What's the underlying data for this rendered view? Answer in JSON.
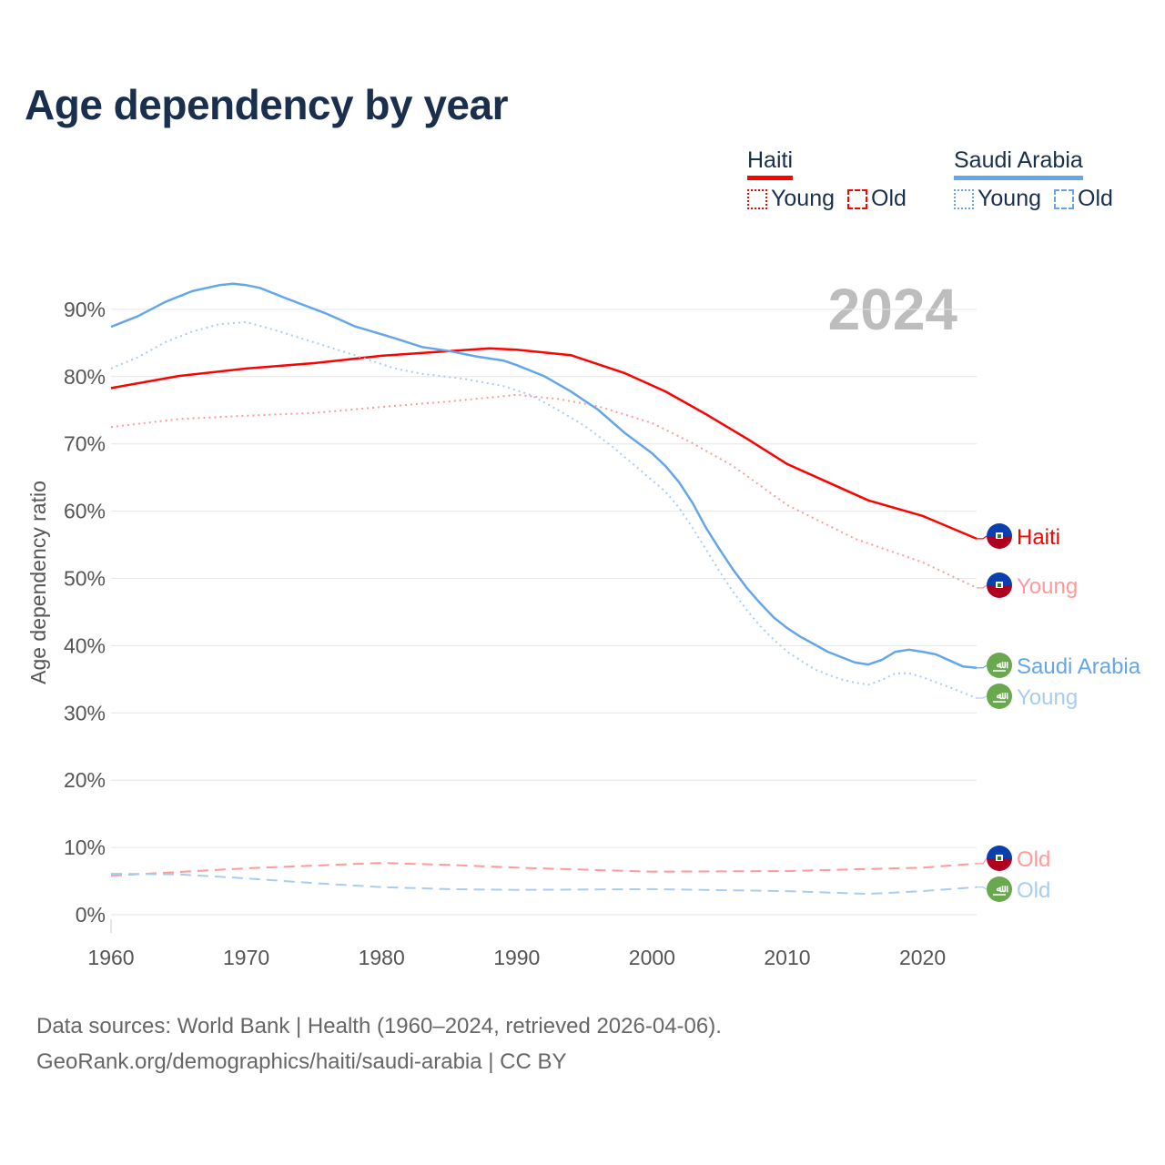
{
  "title": "Age dependency by year",
  "legend": {
    "countries": [
      {
        "name": "Haiti",
        "color": "#ff0000",
        "young_label": "Young",
        "old_label": "Old"
      },
      {
        "name": "Saudi Arabia",
        "color": "#64a6ea",
        "young_label": "Young",
        "old_label": "Old"
      }
    ]
  },
  "footer": {
    "line1": "Data sources: World Bank | Health (1960–2024, retrieved 2026-04-06).",
    "line2": "GeoRank.org/demographics/haiti/saudi-arabia | CC BY"
  },
  "chart_data": {
    "type": "line",
    "title": "Age dependency by year",
    "ylabel": "Age dependency ratio",
    "xlabel": "",
    "year_label": "2024",
    "xlim": [
      1960,
      2024
    ],
    "ylim": [
      0,
      95
    ],
    "x_ticks": [
      1960,
      1970,
      1980,
      1990,
      2000,
      2010,
      2020
    ],
    "y_ticks": [
      0,
      10,
      20,
      30,
      40,
      50,
      60,
      70,
      80,
      90
    ],
    "y_tick_labels": [
      "0%",
      "10%",
      "20%",
      "30%",
      "40%",
      "50%",
      "60%",
      "70%",
      "80%",
      "90%"
    ],
    "grid": true,
    "series": [
      {
        "name": "Haiti",
        "end_label": "Haiti",
        "color": "#ff0000",
        "style": "solid",
        "flag": "haiti",
        "points": [
          [
            1960,
            78.3
          ],
          [
            1965,
            80.1
          ],
          [
            1970,
            81.2
          ],
          [
            1975,
            82
          ],
          [
            1980,
            83.1
          ],
          [
            1985,
            83.8
          ],
          [
            1988,
            84.2
          ],
          [
            1990,
            84
          ],
          [
            1994,
            83.2
          ],
          [
            1998,
            80.5
          ],
          [
            2001,
            77.8
          ],
          [
            2004,
            74.4
          ],
          [
            2007,
            70.8
          ],
          [
            2010,
            67
          ],
          [
            2013,
            64.3
          ],
          [
            2016,
            61.6
          ],
          [
            2020,
            59.3
          ],
          [
            2024,
            55.9
          ]
        ]
      },
      {
        "name": "Haiti Young",
        "end_label": "Young",
        "color": "#ff9a9a",
        "style": "dotted",
        "flag": "haiti",
        "points": [
          [
            1960,
            72.5
          ],
          [
            1965,
            73.7
          ],
          [
            1970,
            74.2
          ],
          [
            1975,
            74.6
          ],
          [
            1980,
            75.5
          ],
          [
            1985,
            76.3
          ],
          [
            1990,
            77.3
          ],
          [
            1993,
            76.7
          ],
          [
            1996,
            75.6
          ],
          [
            2000,
            73.1
          ],
          [
            2003,
            70.1
          ],
          [
            2006,
            66.7
          ],
          [
            2010,
            60.9
          ],
          [
            2015,
            55.9
          ],
          [
            2020,
            52.4
          ],
          [
            2024,
            48.6
          ]
        ]
      },
      {
        "name": "Haiti Old",
        "end_label": "Old",
        "color": "#ff9a9a",
        "style": "dashed",
        "flag": "haiti",
        "points": [
          [
            1960,
            5.8
          ],
          [
            1970,
            6.9
          ],
          [
            1980,
            7.7
          ],
          [
            1985,
            7.4
          ],
          [
            1990,
            7.0
          ],
          [
            2000,
            6.4
          ],
          [
            2010,
            6.5
          ],
          [
            2020,
            7.0
          ],
          [
            2024,
            7.6
          ]
        ]
      },
      {
        "name": "Saudi Arabia",
        "end_label": "Saudi Arabia",
        "color": "#64a6ea",
        "style": "solid",
        "flag": "saudi",
        "points": [
          [
            1960,
            87.4
          ],
          [
            1962,
            89
          ],
          [
            1964,
            91.1
          ],
          [
            1966,
            92.7
          ],
          [
            1968,
            93.6
          ],
          [
            1969,
            93.8
          ],
          [
            1970,
            93.6
          ],
          [
            1971,
            93.2
          ],
          [
            1973,
            91.6
          ],
          [
            1976,
            89.3
          ],
          [
            1978,
            87.5
          ],
          [
            1981,
            85.7
          ],
          [
            1983,
            84.4
          ],
          [
            1985,
            83.8
          ],
          [
            1987,
            83
          ],
          [
            1989,
            82.4
          ],
          [
            1990,
            81.7
          ],
          [
            1992,
            80.1
          ],
          [
            1994,
            77.8
          ],
          [
            1996,
            75.1
          ],
          [
            1998,
            71.6
          ],
          [
            2000,
            68.6
          ],
          [
            2001,
            66.7
          ],
          [
            2002,
            64.3
          ],
          [
            2003,
            61.2
          ],
          [
            2004,
            57.5
          ],
          [
            2005,
            54.3
          ],
          [
            2006,
            51.3
          ],
          [
            2007,
            48.6
          ],
          [
            2008,
            46.3
          ],
          [
            2009,
            44.2
          ],
          [
            2010,
            42.6
          ],
          [
            2011,
            41.3
          ],
          [
            2012,
            40.2
          ],
          [
            2013,
            39.1
          ],
          [
            2014,
            38.3
          ],
          [
            2015,
            37.5
          ],
          [
            2016,
            37.2
          ],
          [
            2017,
            37.9
          ],
          [
            2018,
            39.1
          ],
          [
            2019,
            39.4
          ],
          [
            2020,
            39.1
          ],
          [
            2021,
            38.7
          ],
          [
            2022,
            37.8
          ],
          [
            2023,
            36.9
          ],
          [
            2024,
            36.7
          ]
        ]
      },
      {
        "name": "Saudi Arabia Young",
        "end_label": "Young",
        "color": "#a8cdf3",
        "style": "dotted",
        "flag": "saudi",
        "points": [
          [
            1960,
            81.2
          ],
          [
            1962,
            82.9
          ],
          [
            1964,
            85.1
          ],
          [
            1966,
            86.7
          ],
          [
            1968,
            87.8
          ],
          [
            1970,
            88.1
          ],
          [
            1972,
            87
          ],
          [
            1975,
            85.1
          ],
          [
            1978,
            83.2
          ],
          [
            1981,
            81.2
          ],
          [
            1983,
            80.4
          ],
          [
            1986,
            79.7
          ],
          [
            1989,
            78.6
          ],
          [
            1991,
            77.3
          ],
          [
            1993,
            75.1
          ],
          [
            1995,
            72.7
          ],
          [
            1997,
            69.7
          ],
          [
            1999,
            66.3
          ],
          [
            2001,
            62.9
          ],
          [
            2002,
            60.5
          ],
          [
            2003,
            57.5
          ],
          [
            2004,
            54.3
          ],
          [
            2005,
            51
          ],
          [
            2006,
            48
          ],
          [
            2007,
            45.3
          ],
          [
            2008,
            42.9
          ],
          [
            2009,
            40.9
          ],
          [
            2010,
            39.1
          ],
          [
            2011,
            37.8
          ],
          [
            2012,
            36.5
          ],
          [
            2013,
            35.7
          ],
          [
            2014,
            35
          ],
          [
            2015,
            34.5
          ],
          [
            2016,
            34.2
          ],
          [
            2017,
            34.9
          ],
          [
            2018,
            35.9
          ],
          [
            2019,
            35.9
          ],
          [
            2020,
            35.3
          ],
          [
            2022,
            33.8
          ],
          [
            2024,
            32.2
          ]
        ]
      },
      {
        "name": "Saudi Arabia Old",
        "end_label": "Old",
        "color": "#a8cdf3",
        "style": "dashed",
        "flag": "saudi",
        "points": [
          [
            1960,
            6.1
          ],
          [
            1965,
            6
          ],
          [
            1970,
            5.4
          ],
          [
            1975,
            4.7
          ],
          [
            1980,
            4.1
          ],
          [
            1985,
            3.8
          ],
          [
            1990,
            3.7
          ],
          [
            2000,
            3.8
          ],
          [
            2010,
            3.5
          ],
          [
            2016,
            3.1
          ],
          [
            2020,
            3.5
          ],
          [
            2024,
            4.1
          ]
        ]
      }
    ]
  }
}
